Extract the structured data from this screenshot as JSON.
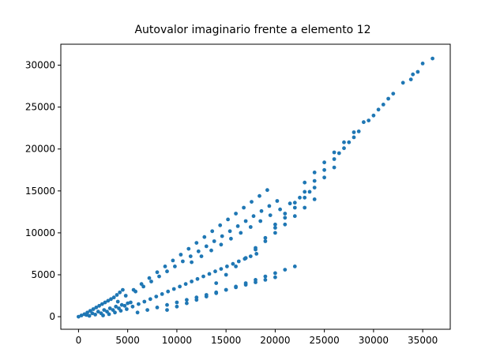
{
  "chart_data": {
    "type": "scatter",
    "title": "Autovalor imaginario frente a elemento 12",
    "xlabel": "",
    "ylabel": "",
    "xlim": [
      -1800,
      37800
    ],
    "ylim": [
      -1500,
      32500
    ],
    "x_ticks": [
      0,
      5000,
      10000,
      15000,
      20000,
      25000,
      30000,
      35000
    ],
    "y_ticks": [
      0,
      5000,
      10000,
      15000,
      20000,
      25000,
      30000
    ],
    "grid": false,
    "legend": "none",
    "marker_color": "#1f77b4",
    "points": {
      "x": [
        0,
        300,
        600,
        900,
        1200,
        1500,
        1800,
        2100,
        2400,
        2700,
        3000,
        3300,
        3600,
        3900,
        4200,
        4500,
        800,
        1400,
        2000,
        2600,
        3200,
        3800,
        4400,
        5000,
        1100,
        1700,
        2300,
        2900,
        3500,
        4100,
        4700,
        5300,
        2500,
        3100,
        3700,
        4300,
        4900,
        5500,
        6100,
        6700,
        7300,
        7900,
        8500,
        9100,
        9700,
        10300,
        10900,
        11500,
        12100,
        12700,
        13300,
        13900,
        14500,
        15100,
        15700,
        16300,
        16900,
        17500,
        18100,
        4000,
        4800,
        5600,
        6400,
        7200,
        8000,
        8800,
        9600,
        10400,
        11200,
        12000,
        12800,
        13600,
        14400,
        15200,
        16000,
        16800,
        17600,
        18400,
        19200,
        6000,
        7000,
        8000,
        9000,
        10000,
        11000,
        12000,
        13000,
        14000,
        15000,
        16000,
        17000,
        18000,
        19000,
        20000,
        5800,
        6600,
        7400,
        8200,
        9000,
        9800,
        10600,
        11400,
        12200,
        13000,
        13800,
        14600,
        15400,
        16200,
        17000,
        17800,
        18600,
        19400,
        20200,
        9000,
        10000,
        11000,
        12000,
        13000,
        14000,
        15000,
        16000,
        17000,
        18000,
        19000,
        20000,
        21000,
        22000,
        11500,
        12500,
        13500,
        14500,
        15500,
        16500,
        17500,
        18500,
        19500,
        20500,
        21500,
        22500,
        23500,
        14000,
        15000,
        16000,
        17000,
        18000,
        19000,
        20000,
        21000,
        22000,
        23000,
        24000,
        17000,
        18000,
        19000,
        20000,
        21000,
        22000,
        23000,
        24000,
        25000,
        26000,
        20000,
        21000,
        22000,
        23000,
        24000,
        25000,
        26000,
        27000,
        28000,
        23000,
        24000,
        25000,
        26000,
        27000,
        28000,
        29000,
        26500,
        27500,
        28500,
        29500,
        30500,
        31500,
        30000,
        31000,
        32000,
        33000,
        34000,
        35000,
        36000,
        34500,
        33800
      ],
      "y": [
        0,
        150,
        300,
        500,
        700,
        900,
        1100,
        1300,
        1500,
        1700,
        1900,
        2100,
        2300,
        2600,
        2900,
        3200,
        200,
        400,
        600,
        800,
        1000,
        1200,
        1400,
        1600,
        100,
        250,
        400,
        600,
        800,
        1000,
        1300,
        1700,
        150,
        300,
        500,
        700,
        900,
        1200,
        1500,
        1800,
        2100,
        2400,
        2700,
        3000,
        3300,
        3600,
        3900,
        4200,
        4500,
        4800,
        5100,
        5400,
        5700,
        6000,
        6300,
        6600,
        6900,
        7200,
        7500,
        1800,
        2500,
        3200,
        3900,
        4600,
        5300,
        6000,
        6700,
        7400,
        8100,
        8800,
        9500,
        10200,
        10900,
        11600,
        12300,
        13000,
        13700,
        14400,
        15100,
        500,
        800,
        1100,
        1400,
        1700,
        2000,
        2300,
        2600,
        2900,
        3200,
        3500,
        3800,
        4100,
        4400,
        4700,
        3000,
        3600,
        4200,
        4800,
        5400,
        6000,
        6600,
        7200,
        7800,
        8400,
        9000,
        9600,
        10200,
        10800,
        11400,
        12000,
        12600,
        13200,
        13800,
        800,
        1200,
        1600,
        2000,
        2400,
        2800,
        3200,
        3600,
        4000,
        4400,
        4800,
        5200,
        5600,
        6000,
        6500,
        7200,
        7900,
        8600,
        9300,
        10000,
        10700,
        11400,
        12100,
        12800,
        13500,
        14200,
        14900,
        4000,
        5000,
        6000,
        7000,
        8000,
        9000,
        10000,
        11000,
        12000,
        13000,
        14000,
        7000,
        8200,
        9400,
        10600,
        11800,
        13000,
        14200,
        15400,
        16600,
        17800,
        11000,
        12300,
        13600,
        14900,
        16200,
        17500,
        18800,
        20100,
        21400,
        16000,
        17200,
        18400,
        19600,
        20800,
        22000,
        23200,
        19500,
        20800,
        22100,
        23400,
        24700,
        26000,
        24000,
        25300,
        26600,
        27900,
        28900,
        30200,
        30800,
        29200,
        28300
      ]
    }
  }
}
